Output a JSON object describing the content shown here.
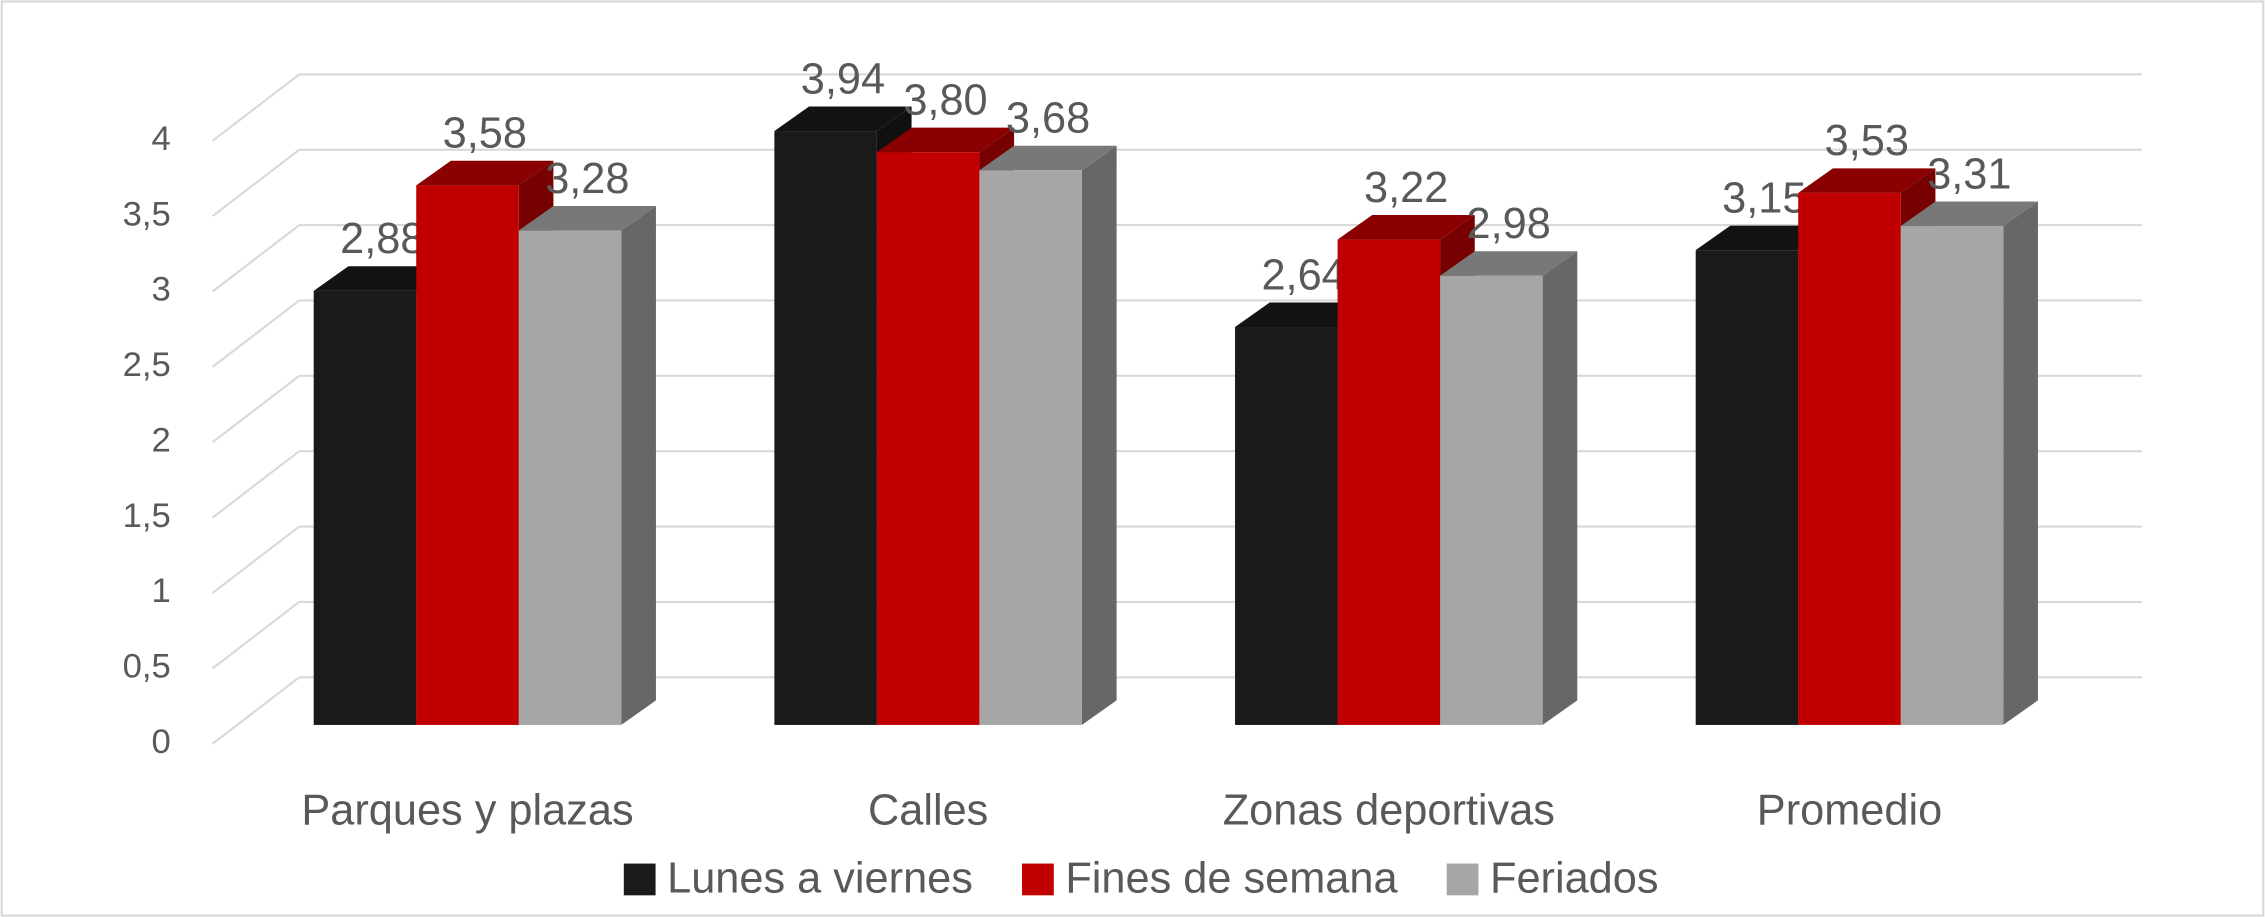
{
  "chart_data": {
    "type": "bar3d",
    "categories": [
      "Parques y plazas",
      "Calles",
      "Zonas deportivas",
      "Promedio"
    ],
    "series": [
      {
        "name": "Lunes a viernes",
        "color": "#1a1a1a",
        "values": [
          2.88,
          3.94,
          2.64,
          3.15
        ],
        "value_labels": [
          "2,88",
          "3,94",
          "2,64",
          "3,15"
        ]
      },
      {
        "name": "Fines de semana",
        "color": "#c00000",
        "values": [
          3.58,
          3.8,
          3.22,
          3.53
        ],
        "value_labels": [
          "3,58",
          "3,80",
          "3,22",
          "3,53"
        ]
      },
      {
        "name": "Feriados",
        "color": "#a6a6a6",
        "values": [
          3.28,
          3.68,
          2.98,
          3.31
        ],
        "value_labels": [
          "3,28",
          "3,68",
          "2,98",
          "3,31"
        ]
      }
    ],
    "ylim": [
      0,
      4
    ],
    "yticks": [
      0,
      {
        "value": 0.5,
        "label": "0,5"
      },
      1,
      {
        "value": 1.5,
        "label": "1,5"
      },
      2,
      {
        "value": 2.5,
        "label": "2,5"
      },
      3,
      {
        "value": 3.5,
        "label": "3,5"
      },
      4
    ],
    "grid": true,
    "legend": "bottom"
  }
}
